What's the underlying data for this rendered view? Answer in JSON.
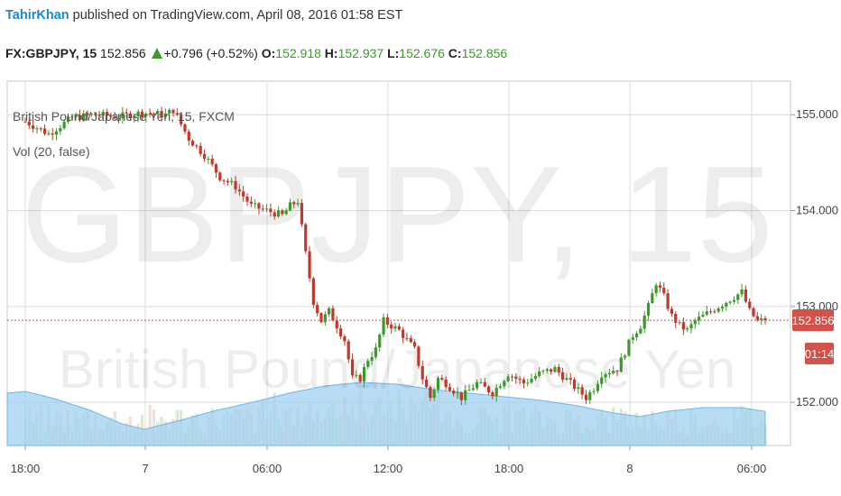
{
  "header": {
    "author": "TahirKhan",
    "published_text": "published on TradingView.com, April 08, 2016 01:58 EST"
  },
  "symbol_bar": {
    "symbol": "FX:GBPJPY, 15",
    "last": "152.856",
    "change": "+0.796 (+0.52%)",
    "o_label": "O:",
    "o_value": "152.918",
    "h_label": "H:",
    "h_value": "152.937",
    "l_label": "L:",
    "l_value": "152.676",
    "c_label": "C:",
    "c_value": "152.856"
  },
  "legend": {
    "series_title": "British Pound/Japanese Yen, 15, FXCM",
    "volume_label": "Vol (20, false)"
  },
  "watermark": {
    "main": "GBPJPY, 15",
    "sub": "British Pound/Japanese Yen"
  },
  "price_badge": {
    "value": "152.856",
    "countdown": "01:14",
    "color": "#d0524a"
  },
  "colors": {
    "up": "#3c9a2a",
    "down": "#c0392b",
    "volume_ma": "#9fd0ef",
    "grid": "#dcdcdc"
  },
  "chart_data": {
    "type": "candlestick",
    "title": "British Pound/Japanese Yen, 15, FXCM",
    "y_axis": {
      "ticks": [
        152.0,
        153.0,
        154.0,
        155.0
      ],
      "tick_labels": [
        "152.000",
        "153.000",
        "154.000",
        "155.000"
      ],
      "range": [
        151.55,
        155.35
      ],
      "side": "right"
    },
    "x_axis": {
      "tick_labels": [
        "18:00",
        "7",
        "06:00",
        "12:00",
        "18:00",
        "8",
        "06:00"
      ]
    },
    "grid": true,
    "last_price": 152.856,
    "close_path": [
      [
        0,
        154.93
      ],
      [
        6,
        154.8
      ],
      [
        12,
        154.97
      ],
      [
        18,
        155.0
      ],
      [
        24,
        154.98
      ],
      [
        30,
        155.02
      ],
      [
        36,
        155.0
      ],
      [
        38,
        155.05
      ],
      [
        42,
        154.75
      ],
      [
        46,
        154.58
      ],
      [
        50,
        154.35
      ],
      [
        54,
        154.25
      ],
      [
        58,
        154.05
      ],
      [
        62,
        154.0
      ],
      [
        66,
        153.95
      ],
      [
        68,
        154.05
      ],
      [
        70,
        154.1
      ],
      [
        72,
        153.55
      ],
      [
        74,
        153.05
      ],
      [
        76,
        152.85
      ],
      [
        78,
        152.95
      ],
      [
        82,
        152.65
      ],
      [
        84,
        152.25
      ],
      [
        86,
        152.25
      ],
      [
        88,
        152.45
      ],
      [
        90,
        152.55
      ],
      [
        92,
        152.85
      ],
      [
        96,
        152.75
      ],
      [
        100,
        152.55
      ],
      [
        102,
        152.25
      ],
      [
        104,
        152.05
      ],
      [
        106,
        152.25
      ],
      [
        108,
        152.2
      ],
      [
        112,
        152.05
      ],
      [
        116,
        152.2
      ],
      [
        120,
        152.1
      ],
      [
        124,
        152.3
      ],
      [
        128,
        152.2
      ],
      [
        132,
        152.3
      ],
      [
        136,
        152.35
      ],
      [
        140,
        152.2
      ],
      [
        144,
        152.05
      ],
      [
        146,
        152.15
      ],
      [
        148,
        152.3
      ],
      [
        152,
        152.35
      ],
      [
        156,
        152.7
      ],
      [
        158,
        152.8
      ],
      [
        160,
        153.0
      ],
      [
        162,
        153.25
      ],
      [
        164,
        153.1
      ],
      [
        166,
        152.9
      ],
      [
        168,
        152.8
      ],
      [
        170,
        152.75
      ],
      [
        172,
        152.85
      ],
      [
        176,
        152.95
      ],
      [
        180,
        153.05
      ],
      [
        184,
        153.15
      ],
      [
        186,
        152.95
      ],
      [
        188,
        152.85
      ],
      [
        190,
        152.856
      ]
    ]
  }
}
